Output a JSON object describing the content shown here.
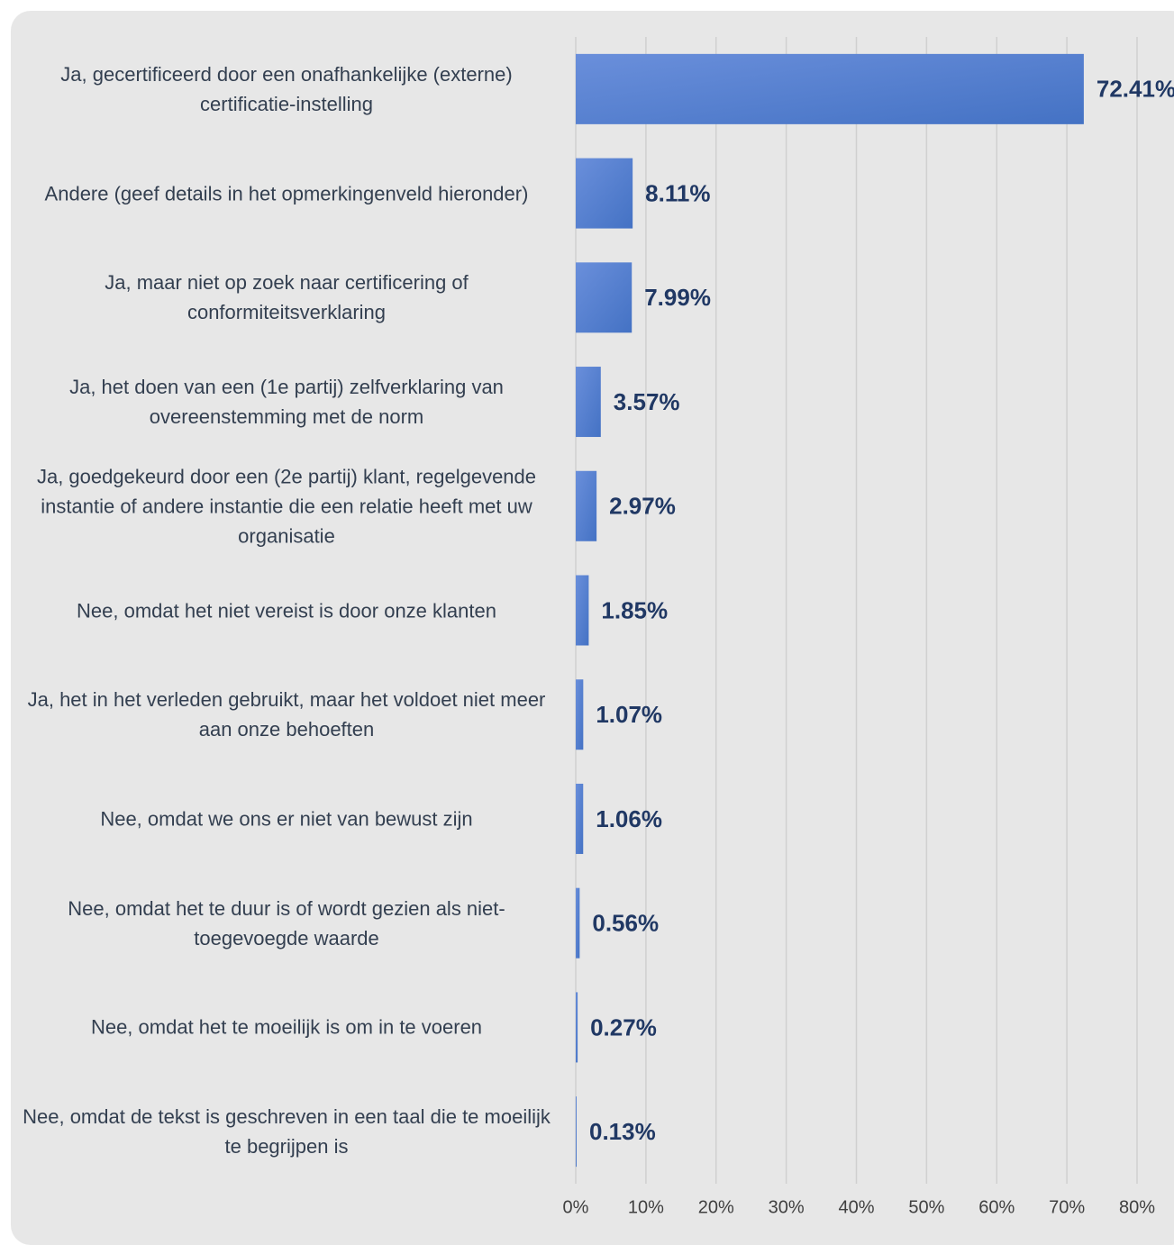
{
  "chart_data": {
    "type": "bar",
    "orientation": "horizontal",
    "categories": [
      "Ja, gecertificeerd door een onafhankelijke (externe) certificatie-instelling",
      "Andere (geef details in het opmerkingenveld hieronder)",
      "Ja, maar niet op zoek naar certificering of conformiteitsverklaring",
      "Ja, het doen van een (1e partij) zelfverklaring van overeenstemming met de norm",
      "Ja, goedgekeurd door een (2e partij) klant, regelgevende instantie of andere instantie die een relatie heeft met uw organisatie",
      "Nee, omdat het niet vereist is door onze klanten",
      "Ja, het in het verleden gebruikt, maar het voldoet niet meer aan onze behoeften",
      "Nee, omdat we ons er niet van bewust zijn",
      "Nee, omdat het te duur is of wordt gezien als niet-toegevoegde waarde",
      "Nee, omdat het te moeilijk is om in te voeren",
      "Nee, omdat de tekst is geschreven in een taal die te moeilijk te begrijpen is"
    ],
    "values": [
      72.41,
      8.11,
      7.99,
      3.57,
      2.97,
      1.85,
      1.07,
      1.06,
      0.56,
      0.27,
      0.13
    ],
    "value_labels": [
      "72.41%",
      "8.11%",
      "7.99%",
      "3.57%",
      "2.97%",
      "1.85%",
      "1.07%",
      "1.06%",
      "0.56%",
      "0.27%",
      "0.13%"
    ],
    "color": "#4472c4",
    "xlim": [
      0,
      80
    ],
    "xticks": [
      {
        "value": 0,
        "label": "0%"
      },
      {
        "value": 10,
        "label": "10%"
      },
      {
        "value": 20,
        "label": "20%"
      },
      {
        "value": 30,
        "label": "30%"
      },
      {
        "value": 40,
        "label": "40%"
      },
      {
        "value": 50,
        "label": "50%"
      },
      {
        "value": 60,
        "label": "60%"
      },
      {
        "value": 70,
        "label": "70%"
      },
      {
        "value": 80,
        "label": "80%"
      }
    ],
    "grid": true
  }
}
